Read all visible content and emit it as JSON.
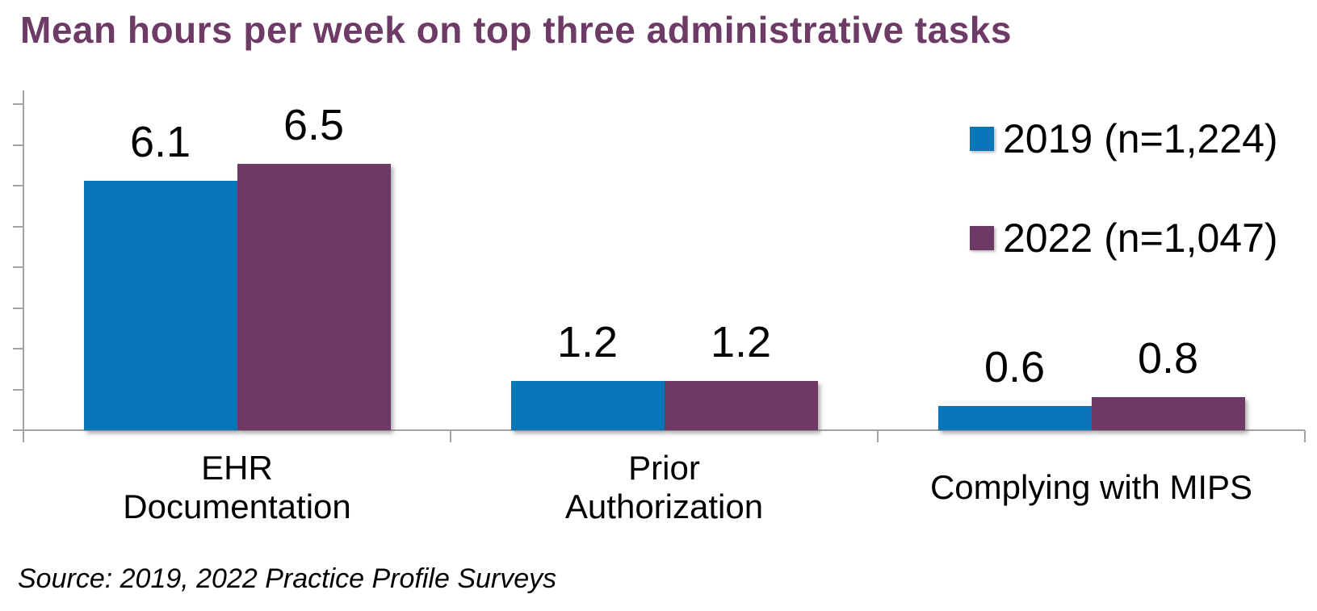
{
  "title": "Mean hours per week on top three administrative tasks",
  "source": "Source: 2019, 2022 Practice Profile Surveys",
  "colors": {
    "series_2019_blue": "#0A75B9",
    "series_2022_purple": "#6C3A64",
    "title_plum": "#6E3B67",
    "axis_gray": "#A3A3A3",
    "text_black": "#000000"
  },
  "legend": {
    "items": [
      {
        "label": "2019 (n=1,224)",
        "color": "#0A75B9"
      },
      {
        "label": "2022 (n=1,047)",
        "color": "#6C3A64"
      }
    ],
    "position": "top-right"
  },
  "chart_data": {
    "type": "bar",
    "categories": [
      "EHR\nDocumentation",
      "Prior\nAuthorization",
      "Complying with MIPS"
    ],
    "series": [
      {
        "name": "2019 (n=1,224)",
        "color": "#0A75B9",
        "values": [
          6.1,
          1.2,
          0.6
        ]
      },
      {
        "name": "2022 (n=1,047)",
        "color": "#6C3A64",
        "values": [
          6.5,
          1.2,
          0.8
        ]
      }
    ],
    "title": "Mean hours per week on top three administrative tasks",
    "xlabel": "",
    "ylabel": "",
    "ylim": [
      0,
      8
    ],
    "y_tick_interval": 1,
    "y_tick_labels_visible": false,
    "x_tick_marks_at_category_boundaries": true,
    "grid": false,
    "legend_position": "top-right",
    "data_labels": true
  }
}
